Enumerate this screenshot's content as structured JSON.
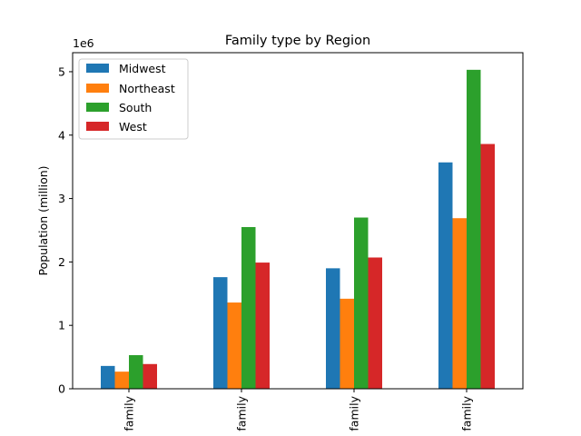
{
  "chart_data": {
    "type": "bar",
    "title": "Family type by Region",
    "xlabel": "",
    "ylabel": "Population (million)",
    "offset_label": "1e6",
    "scale": 1000000,
    "ylim": [
      0,
      5300000
    ],
    "yticks": [
      0,
      1000000,
      2000000,
      3000000,
      4000000,
      5000000
    ],
    "ytick_labels": [
      "0",
      "1",
      "2",
      "3",
      "4",
      "5"
    ],
    "categories": [
      "family",
      "family",
      "family",
      "family"
    ],
    "series": [
      {
        "name": "Midwest",
        "color": "#1f77b4",
        "values": [
          360000,
          1760000,
          1900000,
          3570000
        ]
      },
      {
        "name": "Northeast",
        "color": "#ff7f0e",
        "values": [
          270000,
          1360000,
          1420000,
          2690000
        ]
      },
      {
        "name": "South",
        "color": "#2ca02c",
        "values": [
          530000,
          2550000,
          2700000,
          5030000
        ]
      },
      {
        "name": "West",
        "color": "#d62728",
        "values": [
          390000,
          1990000,
          2070000,
          3860000
        ]
      }
    ],
    "legend_position": "top-left",
    "grid": false
  }
}
